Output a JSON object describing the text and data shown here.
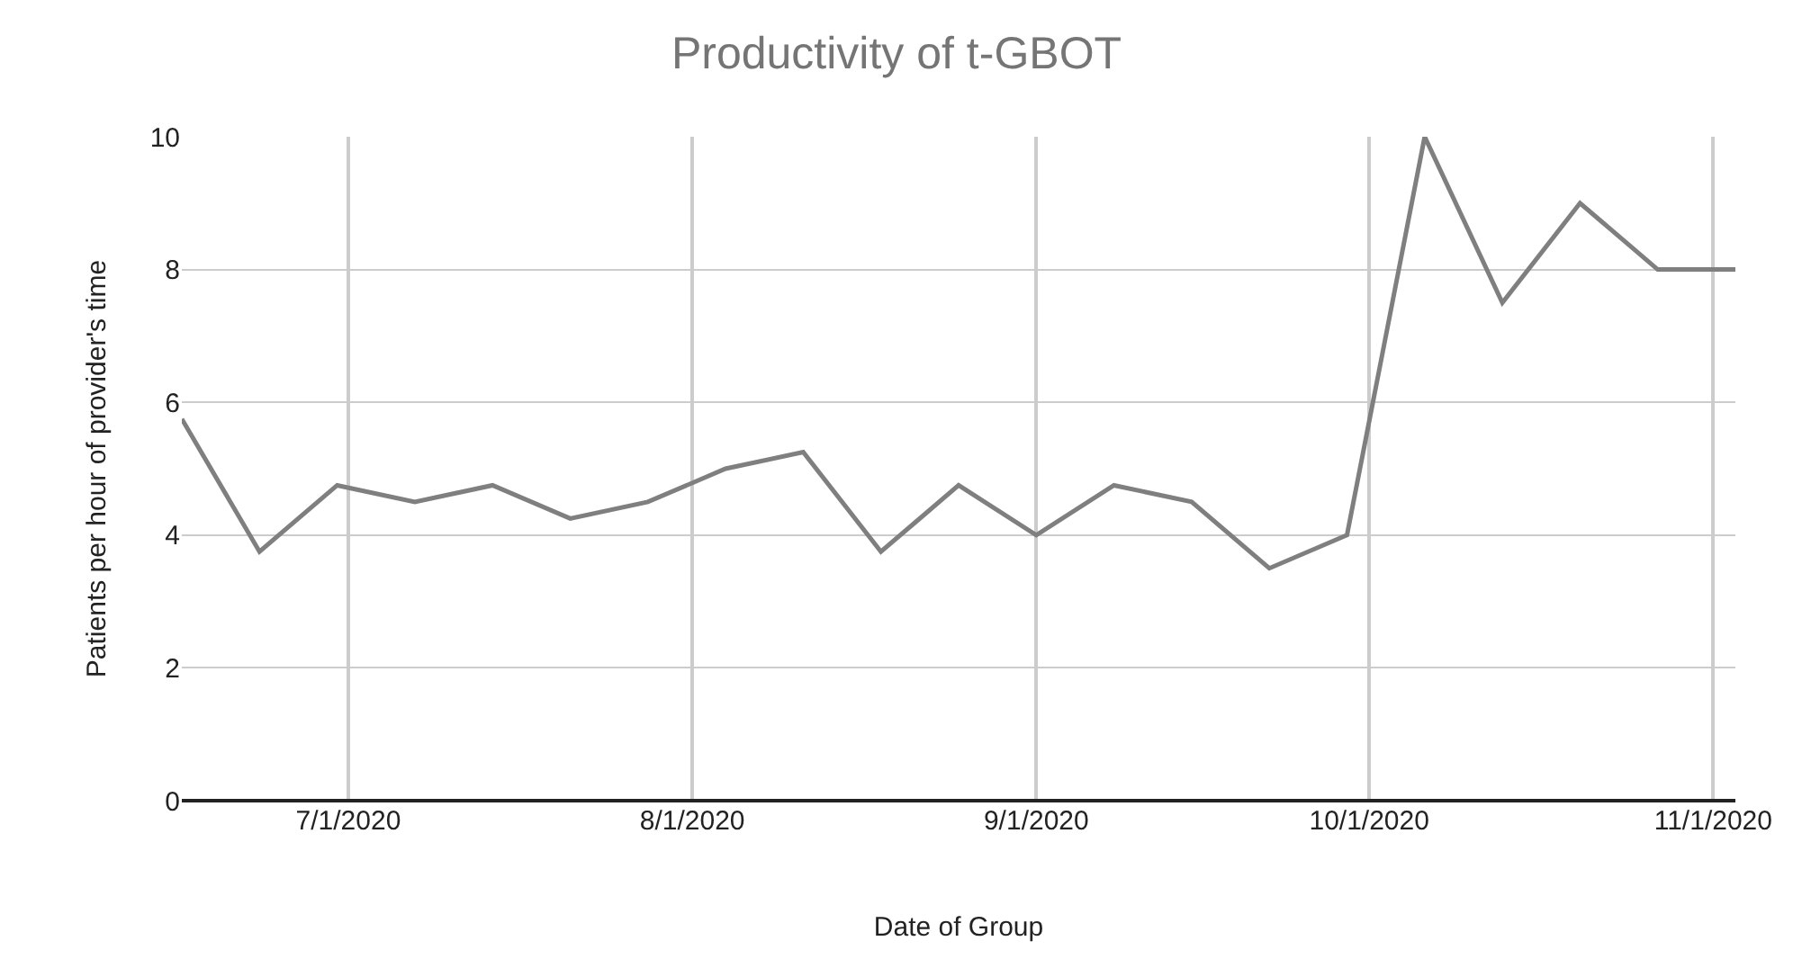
{
  "chart_data": {
    "type": "line",
    "title": "Productivity of t-GBOT",
    "xlabel": "Date of Group",
    "ylabel": "Patients per hour of provider's time",
    "x": [
      "2020-06-16",
      "2020-06-23",
      "2020-06-30",
      "2020-07-07",
      "2020-07-14",
      "2020-07-21",
      "2020-07-28",
      "2020-08-04",
      "2020-08-11",
      "2020-08-18",
      "2020-08-25",
      "2020-09-01",
      "2020-09-08",
      "2020-09-15",
      "2020-09-22",
      "2020-09-29",
      "2020-10-06",
      "2020-10-13",
      "2020-10-20",
      "2020-10-27",
      "2020-11-03"
    ],
    "series": [
      {
        "color": "#7f7f7f",
        "values": [
          5.75,
          3.75,
          4.75,
          4.5,
          4.75,
          4.25,
          4.5,
          5.0,
          5.25,
          3.75,
          4.75,
          4.0,
          4.75,
          4.5,
          3.5,
          4.0,
          10,
          7.5,
          9,
          8,
          8
        ]
      }
    ],
    "xlim": [
      "2020-06-16",
      "2020-11-03"
    ],
    "xticks": [
      {
        "value": "2020-07-01",
        "label": "7/1/2020"
      },
      {
        "value": "2020-08-01",
        "label": "8/1/2020"
      },
      {
        "value": "2020-09-01",
        "label": "9/1/2020"
      },
      {
        "value": "2020-10-01",
        "label": "10/1/2020"
      },
      {
        "value": "2020-11-01",
        "label": "11/1/2020"
      }
    ],
    "ylim": [
      0,
      10
    ],
    "yticks": [
      0,
      2,
      4,
      6,
      8,
      10
    ],
    "grid": true,
    "marker": "none",
    "line_style": "solid"
  }
}
